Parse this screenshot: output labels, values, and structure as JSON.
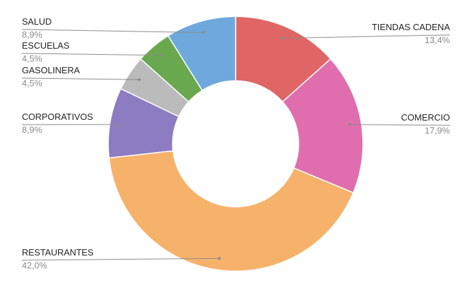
{
  "chart_data": {
    "type": "pie",
    "donut": true,
    "start_angle_deg": 0,
    "direction": "clockwise",
    "slices": [
      {
        "label": "TIENDAS CADENA",
        "value": 13.4,
        "display": "13,4%",
        "color": "#E06666"
      },
      {
        "label": "COMERCIO",
        "value": 17.9,
        "display": "17,9%",
        "color": "#E06EAE"
      },
      {
        "label": "RESTAURANTES",
        "value": 42.0,
        "display": "42,0%",
        "color": "#F6B26B"
      },
      {
        "label": "CORPORATIVOS",
        "value": 8.9,
        "display": "8,9%",
        "color": "#8E7CC3"
      },
      {
        "label": "GASOLINERA",
        "value": 4.5,
        "display": "4,5%",
        "color": "#BBBBBB"
      },
      {
        "label": "ESCUELAS",
        "value": 4.5,
        "display": "4,5%",
        "color": "#6AA84F"
      },
      {
        "label": "SALUD",
        "value": 8.9,
        "display": "8,9%",
        "color": "#6FA8DC"
      }
    ],
    "legend": "none",
    "labels": "outside-with-leader-lines"
  }
}
